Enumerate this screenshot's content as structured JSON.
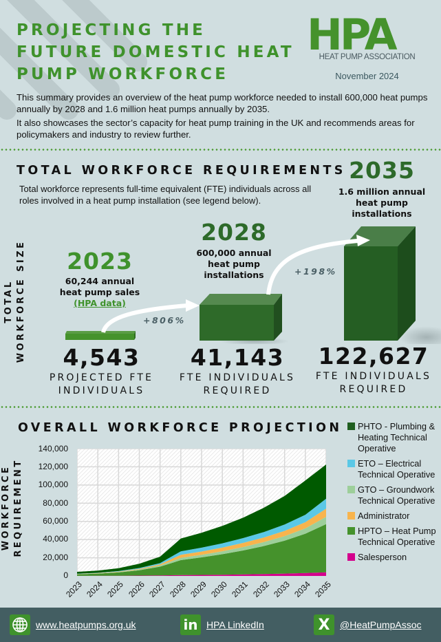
{
  "header": {
    "title_lines": [
      "PROJECTING THE",
      "FUTURE DOMESTIC HEAT",
      "PUMP WORKFORCE"
    ],
    "logo_text": "HPA",
    "logo_subtitle": "HEAT PUMP ASSOCIATION",
    "date": "November 2024",
    "intro_1": "This summary provides an overview of the heat pump workforce needed to install 600,000 heat pumps annually by 2028 and 1.6 million heat pumps annually by 2035.",
    "intro_2": "It also showcases the sector’s capacity for heat pump training in the UK and recommends areas for policymakers and industry to review further."
  },
  "requirements": {
    "heading": "TOTAL WORKFORCE REQUIREMENTS",
    "description": "Total workforce represents full-time equivalent (FTE) individuals across all roles involved in a heat pump installation (see legend below).",
    "axis_label_1": "TOTAL",
    "axis_label_2": "WORKFORCE SIZE",
    "colors": {
      "light_green": "#3f922c",
      "dark_green": "#2d6a2a",
      "box_front": "#255e23",
      "box_top": "#4a7e48",
      "box_side": "#1d4d1c"
    },
    "milestones": [
      {
        "year": "2023",
        "caption_lines": [
          "60,244 annual",
          "heat pump sales"
        ],
        "source_link": "(HPA data)",
        "value": "4,543",
        "label_lines": [
          "PROJECTED FTE",
          "INDIVIDUALS"
        ]
      },
      {
        "year": "2028",
        "caption_lines": [
          "600,000 annual",
          "heat pump",
          "installations"
        ],
        "value": "41,143",
        "label_lines": [
          "FTE INDIVIDUALS",
          "REQUIRED"
        ]
      },
      {
        "year": "2035",
        "caption_lines": [
          "1.6 million annual",
          "heat pump",
          "installations"
        ],
        "value": "122,627",
        "label_lines": [
          "FTE INDIVIDUALS",
          "REQUIRED"
        ]
      }
    ],
    "growth": [
      {
        "from": "2023",
        "to": "2028",
        "label": "+806%"
      },
      {
        "from": "2028",
        "to": "2035",
        "label": "+198%"
      }
    ]
  },
  "projection": {
    "heading": "OVERALL WORKFORCE PROJECTION",
    "ylabel_1": "WORKFORCE",
    "ylabel_2": "REQUIREMENT"
  },
  "chart_data": {
    "type": "area",
    "stacked": true,
    "title": "OVERALL WORKFORCE PROJECTION",
    "xlabel": "",
    "ylabel": "WORKFORCE REQUIREMENT",
    "ylim": [
      0,
      140000
    ],
    "yticks": [
      "0",
      "20,000",
      "40,000",
      "60,000",
      "80,000",
      "100,000",
      "120,000",
      "140,000"
    ],
    "x": [
      "2023",
      "2024",
      "2025",
      "2026",
      "2027",
      "2028",
      "2029",
      "2030",
      "2031",
      "2032",
      "2033",
      "2034",
      "2035"
    ],
    "grid": true,
    "legend_position": "right",
    "series": [
      {
        "name": "Salesperson",
        "color": "#d4008c",
        "values": [
          100,
          150,
          250,
          400,
          600,
          900,
          1100,
          1400,
          1700,
          2100,
          2600,
          3200,
          4000
        ]
      },
      {
        "name": "HPTO – Heat Pump Technical Operative",
        "color": "#45922c",
        "values": [
          1700,
          2400,
          3600,
          5900,
          9600,
          16500,
          19300,
          22500,
          26300,
          30800,
          36200,
          43300,
          53000
        ]
      },
      {
        "name": "GTO – Groundwork Technical Operative",
        "color": "#9dcf9a",
        "values": [
          200,
          300,
          500,
          800,
          1300,
          2600,
          2900,
          3300,
          3800,
          4300,
          5000,
          5800,
          8000
        ]
      },
      {
        "name": "Administrator",
        "color": "#f8b44d",
        "values": [
          200,
          300,
          500,
          800,
          1300,
          3300,
          3600,
          4000,
          4500,
          5100,
          5800,
          6800,
          9000
        ]
      },
      {
        "name": "ETO – Electrical Technical Operative",
        "color": "#5bc8e6",
        "values": [
          200,
          300,
          500,
          800,
          1300,
          3800,
          4200,
          4700,
          5300,
          6000,
          6900,
          8200,
          11000
        ]
      },
      {
        "name": "PHTO - Plumbing & Heating Technical Operative",
        "color": "#005a00",
        "values": [
          2143,
          2350,
          3150,
          4800,
          7100,
          14043,
          16400,
          19100,
          22400,
          26700,
          31500,
          37700,
          37627
        ]
      }
    ],
    "totals": {
      "2023": 4543,
      "2028": 41143,
      "2035": 122627
    }
  },
  "legend": [
    {
      "label": "PHTO - Plumbing & Heating Technical Operative",
      "color": "#1f5e1f"
    },
    {
      "label": "ETO – Electrical Technical Operative",
      "color": "#5bc8e6"
    },
    {
      "label": "GTO – Groundwork Technical Operative",
      "color": "#9dcf9a"
    },
    {
      "label": "Administrator",
      "color": "#f8b44d"
    },
    {
      "label": "HPTO – Heat Pump Technical Operative",
      "color": "#45922c"
    },
    {
      "label": "Salesperson",
      "color": "#d4008c"
    }
  ],
  "footer": {
    "website": "www.heatpumps.org.uk",
    "linkedin": "HPA LinkedIn",
    "linkedin_icon": "in",
    "x_handle": "@HeatPumpAssoc",
    "x_icon": "X"
  }
}
